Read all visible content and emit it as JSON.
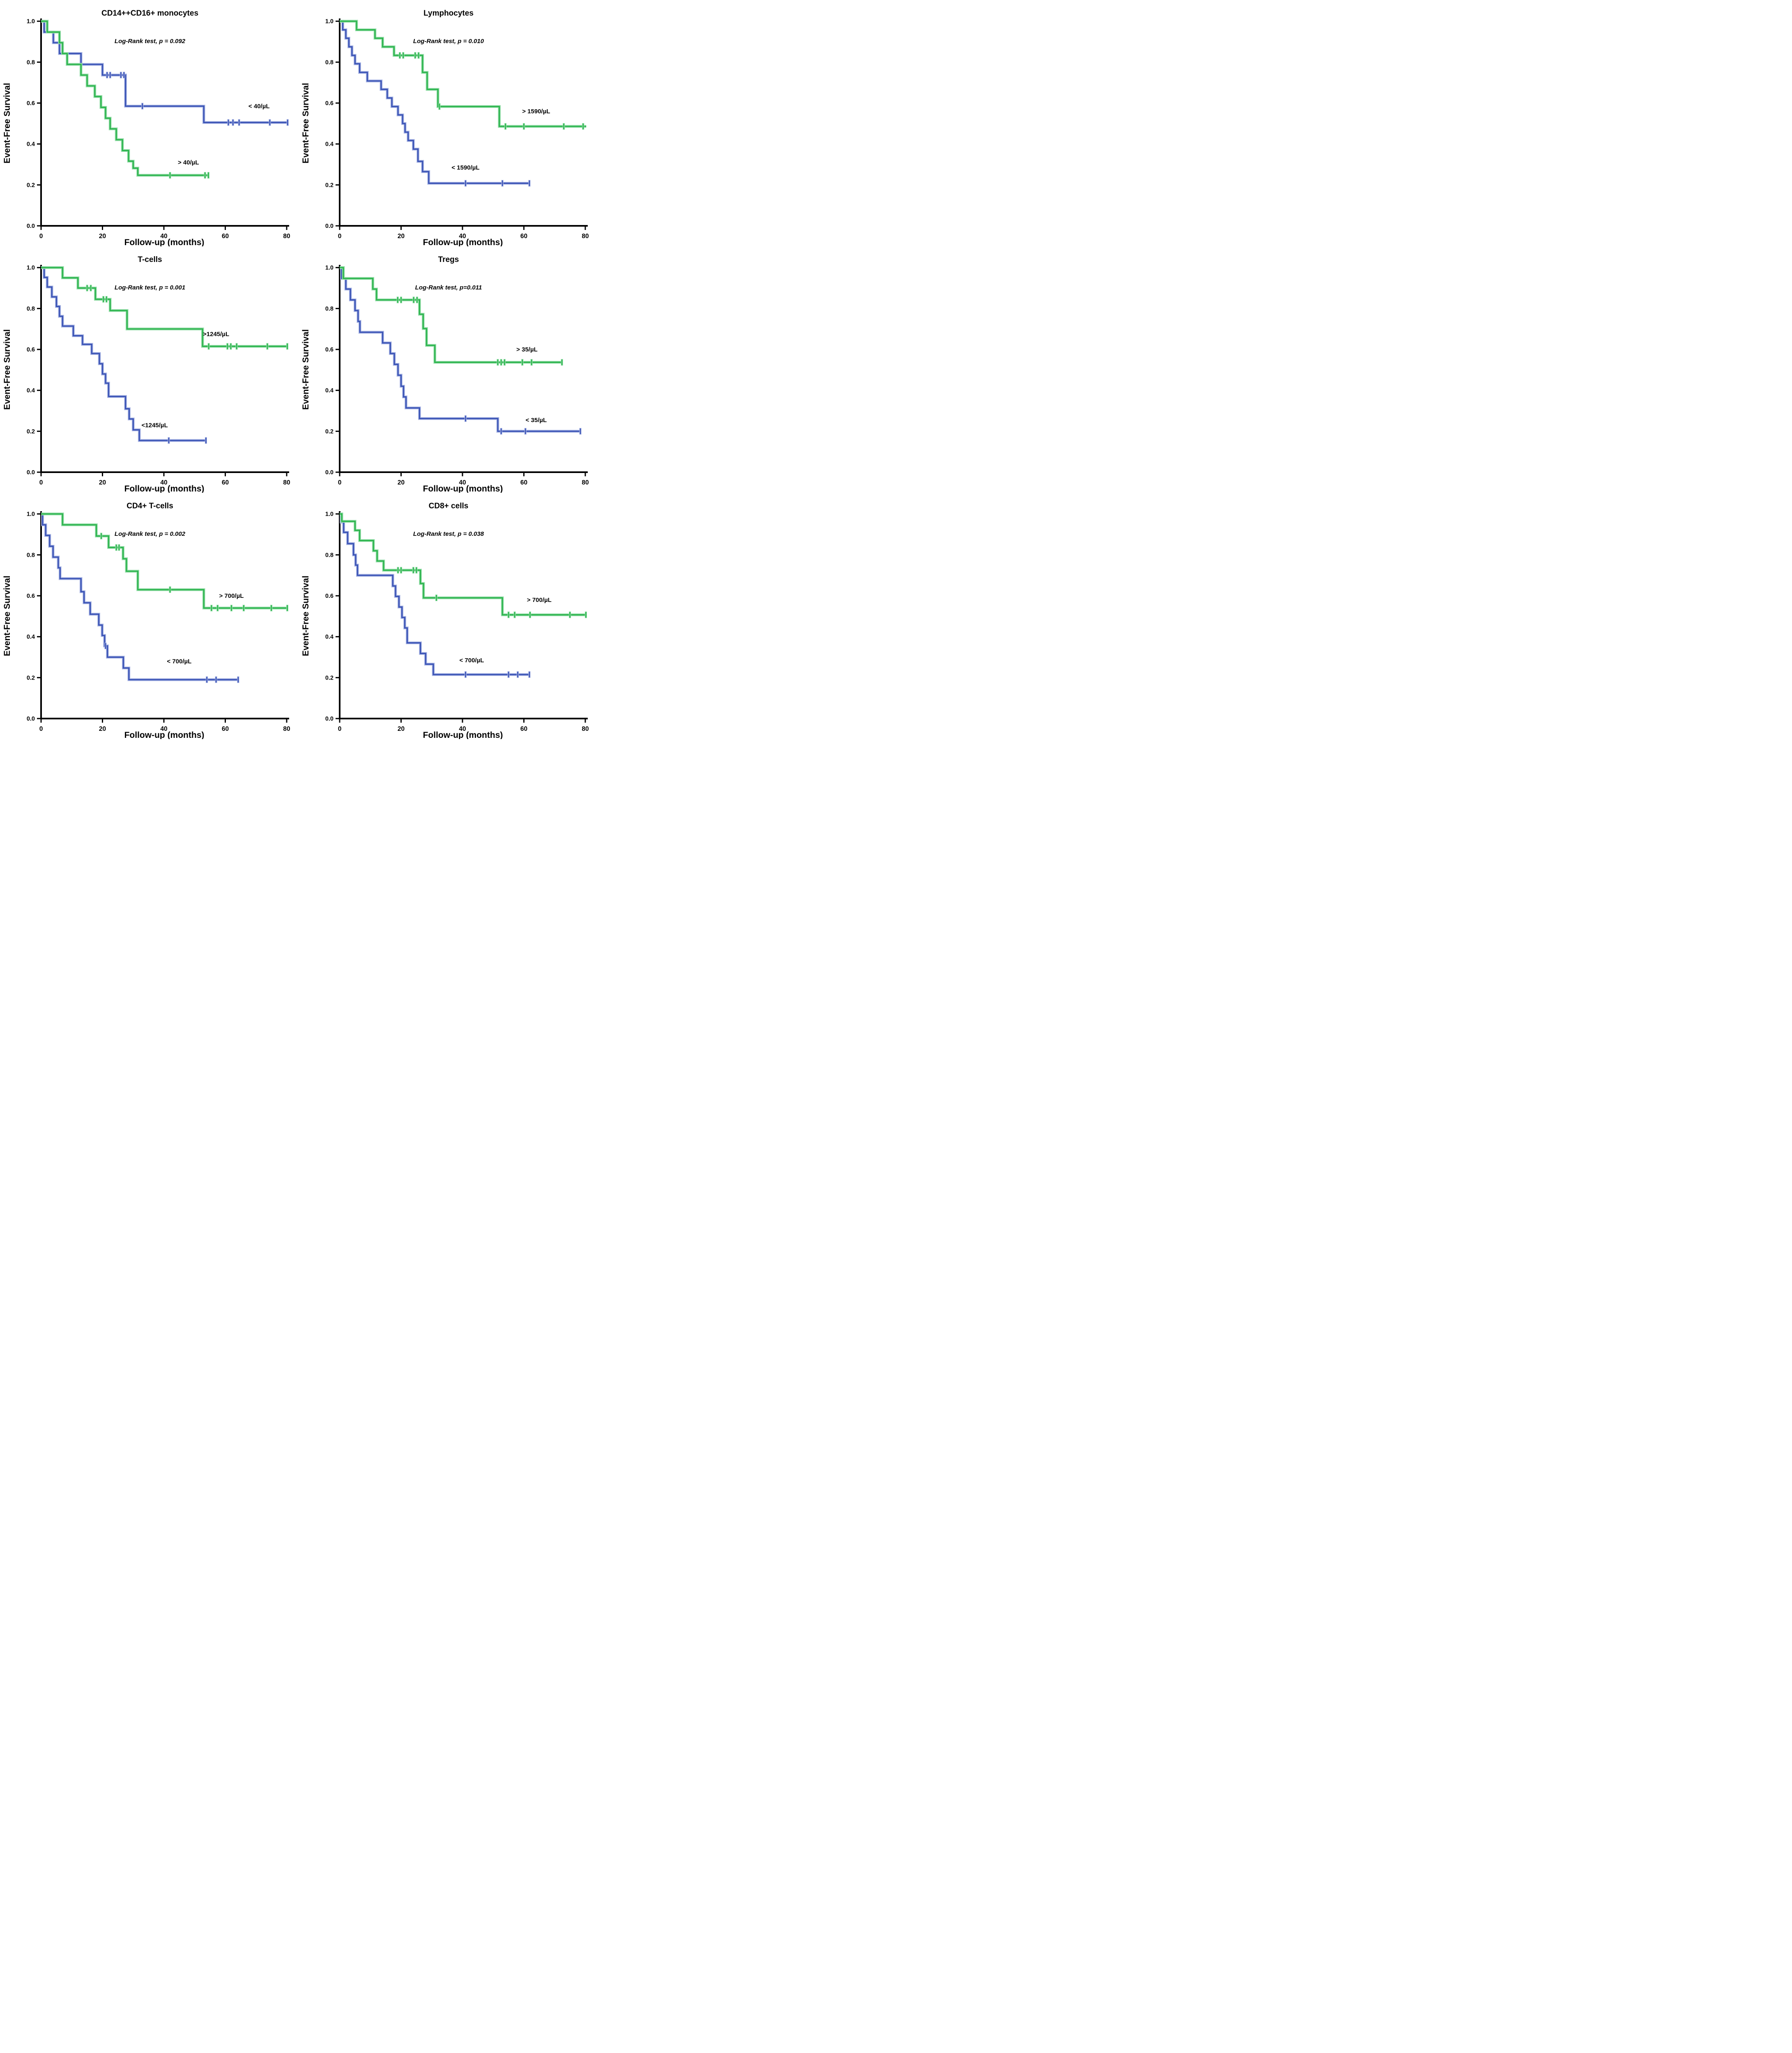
{
  "layout": {
    "xlabel": "Follow-up (months)",
    "ylabel": "Event-Free Survival",
    "xlim": [
      0,
      80
    ],
    "ylim": [
      0.0,
      1.0
    ],
    "x_ticks": [
      0,
      20,
      40,
      60,
      80
    ],
    "x_tick_labels": [
      "0",
      "20",
      "40",
      "60",
      "80"
    ],
    "y_ticks": [
      1.0,
      0.8,
      0.6,
      0.4,
      0.2,
      0.0
    ],
    "y_tick_labels": [
      "1.0",
      "0.8",
      "0.6",
      "0.4",
      "0.2",
      "0.0"
    ],
    "grid": "off",
    "legend_position": "inline-labels"
  },
  "colors": {
    "blue": "#3a53b5",
    "blue_halo": "#aab6e4",
    "green": "#2db44e",
    "green_halo": "#9bdfae",
    "axis": "#000000"
  },
  "chart_data": [
    {
      "id": "cd14-cd16-monocytes",
      "type": "line",
      "title": "CD14++CD16+ monocytes",
      "subtitle": "Log-Rank test, p = 0.092",
      "series": [
        {
          "name": "< 40/µL",
          "color_key": "blue",
          "points": [
            [
              1,
              0.947
            ],
            [
              4,
              0.895
            ],
            [
              6,
              0.842
            ],
            [
              13,
              0.789
            ],
            [
              20,
              0.737
            ],
            [
              27.5,
              0.585
            ],
            [
              53,
              0.505
            ]
          ],
          "end": 80.4,
          "censors": [
            [
              21.5,
              0.737
            ],
            [
              22.5,
              0.737
            ],
            [
              26,
              0.737
            ],
            [
              27,
              0.737
            ],
            [
              33,
              0.585
            ],
            [
              61,
              0.505
            ],
            [
              62.5,
              0.505
            ],
            [
              64.5,
              0.505
            ],
            [
              74.5,
              0.505
            ],
            [
              80.3,
              0.505
            ]
          ],
          "label_pos": [
            71,
            0.575
          ]
        },
        {
          "name": "> 40/µL",
          "color_key": "green",
          "points": [
            [
              2,
              0.947
            ],
            [
              6,
              0.895
            ],
            [
              7,
              0.842
            ],
            [
              8.5,
              0.789
            ],
            [
              13,
              0.737
            ],
            [
              15,
              0.684
            ],
            [
              17.5,
              0.632
            ],
            [
              19.5,
              0.579
            ],
            [
              21,
              0.526
            ],
            [
              22.5,
              0.474
            ],
            [
              24.5,
              0.421
            ],
            [
              26.5,
              0.368
            ],
            [
              28.5,
              0.316
            ],
            [
              30,
              0.282
            ],
            [
              31.5,
              0.247
            ]
          ],
          "end": 54.6,
          "censors": [
            [
              42,
              0.247
            ],
            [
              53.4,
              0.247
            ],
            [
              54.5,
              0.247
            ]
          ],
          "label_pos": [
            48,
            0.3
          ]
        }
      ]
    },
    {
      "id": "lymphocytes",
      "type": "line",
      "title": "Lymphocytes",
      "subtitle": "Log-Rank test, p = 0.010",
      "series": [
        {
          "name": "> 1590/µL",
          "color_key": "green",
          "points": [
            [
              5.5,
              0.958
            ],
            [
              11.5,
              0.917
            ],
            [
              14,
              0.875
            ],
            [
              17.7,
              0.833
            ],
            [
              27,
              0.75
            ],
            [
              28.5,
              0.667
            ],
            [
              32,
              0.583
            ],
            [
              52,
              0.486
            ]
          ],
          "end": 80.3,
          "censors": [
            [
              19.6,
              0.833
            ],
            [
              20.7,
              0.833
            ],
            [
              24.6,
              0.833
            ],
            [
              25.7,
              0.833
            ],
            [
              32.5,
              0.583
            ],
            [
              54,
              0.486
            ],
            [
              60,
              0.486
            ],
            [
              73,
              0.486
            ],
            [
              79.3,
              0.486
            ]
          ],
          "label_pos": [
            64,
            0.55
          ]
        },
        {
          "name": "< 1590/µL",
          "color_key": "blue",
          "points": [
            [
              1,
              0.958
            ],
            [
              2,
              0.917
            ],
            [
              3,
              0.875
            ],
            [
              4,
              0.833
            ],
            [
              5,
              0.792
            ],
            [
              6.5,
              0.75
            ],
            [
              9,
              0.708
            ],
            [
              13.5,
              0.667
            ],
            [
              15.5,
              0.625
            ],
            [
              17,
              0.583
            ],
            [
              19,
              0.542
            ],
            [
              20.5,
              0.5
            ],
            [
              21.3,
              0.458
            ],
            [
              22.3,
              0.417
            ],
            [
              24,
              0.375
            ],
            [
              25.5,
              0.315
            ],
            [
              27,
              0.265
            ],
            [
              29,
              0.208
            ]
          ],
          "end": 62,
          "censors": [
            [
              41,
              0.208
            ],
            [
              53,
              0.208
            ],
            [
              61.8,
              0.208
            ]
          ],
          "label_pos": [
            41,
            0.275
          ]
        }
      ]
    },
    {
      "id": "t-cells",
      "type": "line",
      "title": "T-cells",
      "subtitle": "Log-Rank test, p = 0.001",
      "series": [
        {
          "name": ">1245/µL",
          "color_key": "green",
          "points": [
            [
              7,
              0.95
            ],
            [
              12,
              0.9
            ],
            [
              17.7,
              0.845
            ],
            [
              22.5,
              0.79
            ],
            [
              28,
              0.7
            ],
            [
              52.6,
              0.615
            ]
          ],
          "end": 80.3,
          "censors": [
            [
              15,
              0.9
            ],
            [
              16.2,
              0.9
            ],
            [
              20.3,
              0.845
            ],
            [
              21.3,
              0.845
            ],
            [
              54.6,
              0.615
            ],
            [
              60.7,
              0.615
            ],
            [
              61.8,
              0.615
            ],
            [
              63.7,
              0.615
            ],
            [
              73.7,
              0.615
            ],
            [
              80.2,
              0.615
            ]
          ],
          "label_pos": [
            57,
            0.665
          ]
        },
        {
          "name": "<1245/µL",
          "color_key": "blue",
          "points": [
            [
              1,
              0.952
            ],
            [
              2,
              0.905
            ],
            [
              3.5,
              0.857
            ],
            [
              5,
              0.81
            ],
            [
              6,
              0.762
            ],
            [
              7,
              0.714
            ],
            [
              10.5,
              0.667
            ],
            [
              13.5,
              0.625
            ],
            [
              16.5,
              0.58
            ],
            [
              19,
              0.53
            ],
            [
              20,
              0.48
            ],
            [
              21,
              0.435
            ],
            [
              22,
              0.37
            ],
            [
              27.5,
              0.31
            ],
            [
              28.7,
              0.26
            ],
            [
              30,
              0.207
            ],
            [
              32,
              0.155
            ]
          ],
          "end": 54,
          "censors": [
            [
              41.6,
              0.155
            ],
            [
              53.7,
              0.155
            ]
          ],
          "label_pos": [
            37,
            0.22
          ]
        }
      ]
    },
    {
      "id": "tregs",
      "type": "line",
      "title": "Tregs",
      "subtitle": "Log-Rank test, p=0.011",
      "series": [
        {
          "name": "> 35/µL",
          "color_key": "green",
          "points": [
            [
              1.2,
              0.947
            ],
            [
              10.8,
              0.895
            ],
            [
              12,
              0.842
            ],
            [
              26,
              0.772
            ],
            [
              27.2,
              0.702
            ],
            [
              28.3,
              0.62
            ],
            [
              31,
              0.537
            ]
          ],
          "end": 72.5,
          "censors": [
            [
              18.9,
              0.842
            ],
            [
              20,
              0.842
            ],
            [
              24.1,
              0.842
            ],
            [
              25.2,
              0.842
            ],
            [
              51.5,
              0.537
            ],
            [
              52.6,
              0.537
            ],
            [
              53.7,
              0.537
            ],
            [
              59.5,
              0.537
            ],
            [
              62.5,
              0.537
            ],
            [
              72.4,
              0.537
            ]
          ],
          "label_pos": [
            61,
            0.59
          ]
        },
        {
          "name": "< 35/µL",
          "color_key": "blue",
          "points": [
            [
              0.6,
              0.947
            ],
            [
              2,
              0.895
            ],
            [
              3.5,
              0.842
            ],
            [
              5,
              0.79
            ],
            [
              6,
              0.737
            ],
            [
              6.6,
              0.684
            ],
            [
              14,
              0.632
            ],
            [
              16.5,
              0.58
            ],
            [
              17.8,
              0.527
            ],
            [
              19,
              0.474
            ],
            [
              20,
              0.42
            ],
            [
              20.8,
              0.368
            ],
            [
              21.6,
              0.314
            ],
            [
              26,
              0.262
            ],
            [
              51.5,
              0.2
            ]
          ],
          "end": 78.5,
          "censors": [
            [
              41,
              0.262
            ],
            [
              52.6,
              0.2
            ],
            [
              60.5,
              0.2
            ],
            [
              78.4,
              0.2
            ]
          ],
          "label_pos": [
            64,
            0.245
          ]
        }
      ]
    },
    {
      "id": "cd4-t-cells",
      "type": "line",
      "title": "CD4+ T-cells",
      "subtitle": "Log-Rank test, p = 0.002",
      "series": [
        {
          "name": "> 700/µL",
          "color_key": "green",
          "points": [
            [
              7,
              0.947
            ],
            [
              18,
              0.892
            ],
            [
              22,
              0.836
            ],
            [
              26.7,
              0.781
            ],
            [
              27.8,
              0.72
            ],
            [
              31.5,
              0.63
            ],
            [
              53,
              0.54
            ]
          ],
          "end": 80.3,
          "censors": [
            [
              19.6,
              0.892
            ],
            [
              24.5,
              0.836
            ],
            [
              25.4,
              0.836
            ],
            [
              42,
              0.63
            ],
            [
              55.5,
              0.54
            ],
            [
              57.5,
              0.54
            ],
            [
              62,
              0.54
            ],
            [
              66,
              0.54
            ],
            [
              75,
              0.54
            ],
            [
              80.2,
              0.54
            ]
          ],
          "label_pos": [
            62,
            0.59
          ]
        },
        {
          "name": "< 700/µL",
          "color_key": "blue",
          "points": [
            [
              0.5,
              0.947
            ],
            [
              1.5,
              0.895
            ],
            [
              2.8,
              0.842
            ],
            [
              3.9,
              0.789
            ],
            [
              5.6,
              0.737
            ],
            [
              6.2,
              0.684
            ],
            [
              13,
              0.62
            ],
            [
              14,
              0.566
            ],
            [
              16,
              0.51
            ],
            [
              18.8,
              0.457
            ],
            [
              19.9,
              0.406
            ],
            [
              20.7,
              0.355
            ],
            [
              21.6,
              0.3
            ],
            [
              26.8,
              0.247
            ],
            [
              28.6,
              0.19
            ]
          ],
          "end": 64.3,
          "censors": [
            [
              21,
              0.355
            ],
            [
              54,
              0.19
            ],
            [
              57,
              0.19
            ],
            [
              64.2,
              0.19
            ]
          ],
          "label_pos": [
            45,
            0.27
          ]
        }
      ]
    },
    {
      "id": "cd8-cells",
      "type": "line",
      "title": "CD8+ cells",
      "subtitle": "Log-Rank test, p = 0.038",
      "series": [
        {
          "name": "> 700/µL",
          "color_key": "green",
          "points": [
            [
              0.7,
              0.964
            ],
            [
              5,
              0.92
            ],
            [
              6.5,
              0.87
            ],
            [
              11,
              0.82
            ],
            [
              12.2,
              0.77
            ],
            [
              14.3,
              0.725
            ],
            [
              26.3,
              0.66
            ],
            [
              27.3,
              0.59
            ],
            [
              53,
              0.507
            ]
          ],
          "end": 80.3,
          "censors": [
            [
              19,
              0.725
            ],
            [
              20,
              0.725
            ],
            [
              24,
              0.725
            ],
            [
              25,
              0.725
            ],
            [
              31.5,
              0.59
            ],
            [
              55,
              0.507
            ],
            [
              57,
              0.507
            ],
            [
              62,
              0.507
            ],
            [
              75,
              0.507
            ],
            [
              80.2,
              0.507
            ]
          ],
          "label_pos": [
            65,
            0.57
          ]
        },
        {
          "name": "< 700/µL",
          "color_key": "blue",
          "points": [
            [
              0.5,
              0.96
            ],
            [
              1.3,
              0.91
            ],
            [
              2.6,
              0.855
            ],
            [
              4.5,
              0.8
            ],
            [
              5.2,
              0.75
            ],
            [
              5.8,
              0.7
            ],
            [
              17.3,
              0.648
            ],
            [
              18.2,
              0.597
            ],
            [
              19.3,
              0.545
            ],
            [
              20.3,
              0.494
            ],
            [
              21.2,
              0.443
            ],
            [
              22,
              0.37
            ],
            [
              26.3,
              0.318
            ],
            [
              28,
              0.266
            ],
            [
              30.5,
              0.215
            ]
          ],
          "end": 62,
          "censors": [
            [
              41,
              0.215
            ],
            [
              55,
              0.215
            ],
            [
              58,
              0.215
            ],
            [
              61.8,
              0.215
            ]
          ],
          "label_pos": [
            43,
            0.275
          ]
        }
      ]
    }
  ]
}
